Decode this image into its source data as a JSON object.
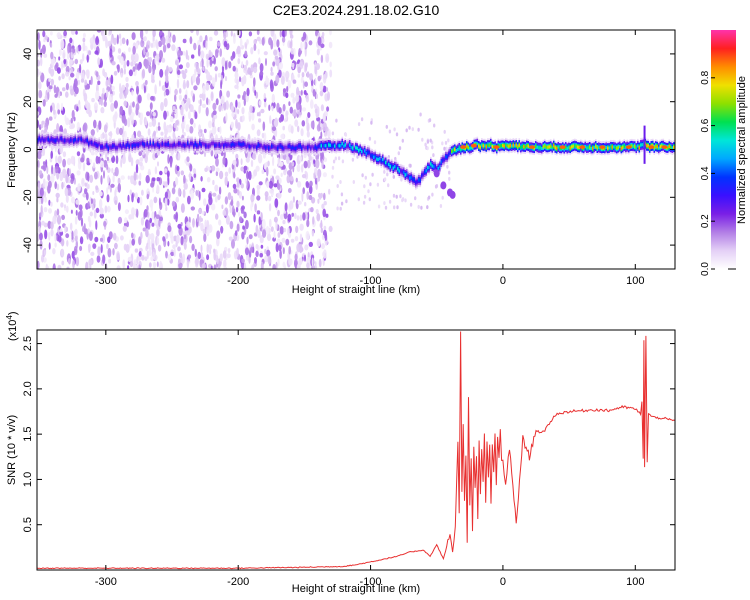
{
  "figure_title": "C2E3.2024.291.18.02.G10",
  "chart_data": [
    {
      "type": "heatmap",
      "title": "C2E3.2024.291.18.02.G10",
      "xlabel": "Height of straight line (km)",
      "ylabel": "Frequency (Hz)",
      "xlim": [
        -352,
        130
      ],
      "ylim": [
        -50,
        50
      ],
      "x_ticks": [
        -300,
        -200,
        -100,
        0,
        100
      ],
      "y_ticks": [
        -40,
        -20,
        0,
        20,
        40
      ],
      "colorbar": {
        "label": "Normalized spectral amplitude",
        "range": [
          0,
          1
        ],
        "ticks": [
          "0.0",
          "0.2",
          "0.4",
          "0.6",
          "0.8"
        ],
        "colormap": [
          "#ffffff",
          "#e4d0f6",
          "#b27ee6",
          "#7a1fe6",
          "#3a10ff",
          "#0033ff",
          "#00a8ff",
          "#00e6d8",
          "#00e050",
          "#8ee000",
          "#f0e000",
          "#ff8c00",
          "#ff2020",
          "#ff33aa"
        ]
      },
      "trace": {
        "x": [
          -350,
          -320,
          -300,
          -280,
          -260,
          -240,
          -220,
          -200,
          -180,
          -160,
          -140,
          -120,
          -110,
          -100,
          -95,
          -90,
          -85,
          -80,
          -75,
          -70,
          -65,
          -60,
          -55,
          -50,
          -45,
          -40,
          -35,
          -30,
          -25,
          -20,
          -15,
          -10,
          -5,
          0,
          20,
          40,
          60,
          80,
          100,
          107,
          110,
          130
        ],
        "y": [
          4,
          4,
          1,
          2,
          2,
          2,
          2,
          2,
          1,
          1,
          1,
          2,
          0,
          -2,
          -4,
          -5,
          -7,
          -8,
          -10,
          -12,
          -14,
          -10,
          -6,
          -8,
          -4,
          -1,
          0,
          1,
          1,
          2,
          1,
          2,
          1,
          2,
          1,
          1,
          1,
          1,
          1,
          2,
          1,
          1
        ]
      },
      "branch": {
        "x": [
          -50,
          -45,
          -40,
          -38
        ],
        "y": [
          -10,
          -15,
          -18,
          -19
        ]
      },
      "noise_region_x": [
        -352,
        -130
      ]
    },
    {
      "type": "line",
      "title": "",
      "xlabel": "Height of straight line (km)",
      "ylabel": "SNR (10 * v/v)",
      "y_multiplier": "(x10",
      "y_multiplier_exp": "4",
      "y_multiplier_close": ")",
      "xlim": [
        -352,
        130
      ],
      "ylim": [
        0,
        2.65
      ],
      "x_ticks": [
        -300,
        -200,
        -100,
        0,
        100
      ],
      "y_ticks": [
        0.5,
        1.0,
        1.5,
        2.0,
        2.5
      ],
      "y_tick_labels": [
        "0.5",
        "1.0",
        "1.5",
        "2.0",
        "2.5"
      ],
      "color": "#e83030",
      "series": [
        {
          "name": "",
          "x": [
            -352,
            -300,
            -250,
            -200,
            -150,
            -120,
            -110,
            -100,
            -90,
            -80,
            -70,
            -60,
            -55,
            -50,
            -45,
            -40,
            -38,
            -36,
            -34,
            -33,
            -32,
            -31,
            -30,
            -29,
            -28,
            -27,
            -26,
            -25,
            -24,
            -23,
            -22,
            -21,
            -20,
            -19,
            -18,
            -17,
            -16,
            -15,
            -14,
            -13,
            -12,
            -11,
            -10,
            -9,
            -8,
            -7,
            -6,
            -5,
            -4,
            -3,
            -2,
            -1,
            0,
            2,
            5,
            10,
            15,
            20,
            25,
            30,
            35,
            40,
            50,
            60,
            70,
            80,
            90,
            100,
            104,
            105,
            106,
            106.5,
            107,
            107.5,
            108,
            109,
            110,
            112,
            115,
            120,
            125,
            130
          ],
          "y": [
            0.02,
            0.02,
            0.02,
            0.02,
            0.03,
            0.04,
            0.06,
            0.09,
            0.12,
            0.15,
            0.2,
            0.22,
            0.15,
            0.28,
            0.12,
            0.4,
            0.2,
            0.5,
            1.4,
            0.6,
            2.64,
            0.9,
            1.6,
            0.8,
            1.3,
            0.3,
            1.9,
            0.7,
            1.2,
            0.4,
            1.35,
            0.9,
            1.25,
            0.55,
            1.45,
            0.85,
            1.3,
            0.95,
            1.5,
            0.75,
            1.4,
            1.05,
            1.4,
            0.7,
            1.35,
            1.1,
            1.5,
            0.9,
            1.45,
            1.25,
            1.55,
            1.2,
            1.2,
            0.95,
            1.35,
            0.5,
            1.45,
            1.25,
            1.55,
            1.5,
            1.62,
            1.72,
            1.75,
            1.76,
            1.77,
            1.76,
            1.8,
            1.78,
            1.72,
            1.85,
            1.2,
            2.55,
            1.15,
            1.9,
            2.58,
            1.2,
            1.72,
            1.7,
            1.68,
            1.68,
            1.66,
            1.65
          ]
        }
      ]
    }
  ]
}
